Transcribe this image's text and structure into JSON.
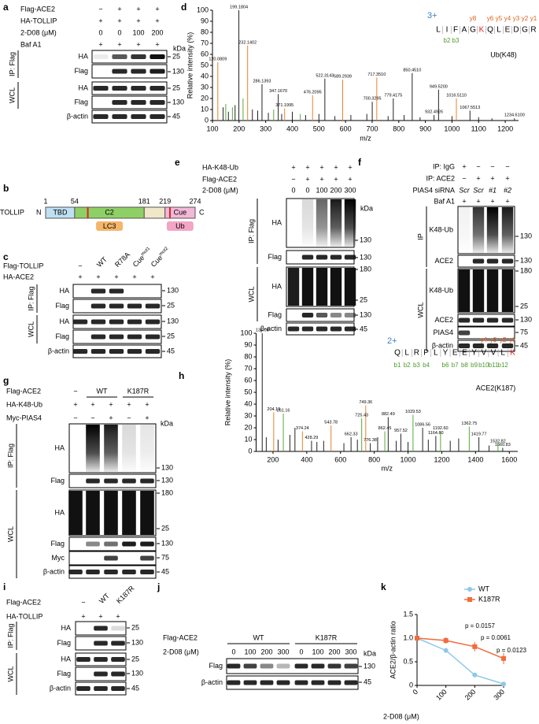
{
  "panels": {
    "a": {
      "letter": "a",
      "header": [
        {
          "label": "Flag-ACE2",
          "cells": [
            "−",
            "+",
            "+",
            "+"
          ]
        },
        {
          "label": "HA-TOLLIP",
          "cells": [
            "+",
            "+",
            "+",
            "+"
          ]
        },
        {
          "label": "2-D08 (μM)",
          "cells": [
            0,
            0,
            100,
            200
          ]
        },
        {
          "label": "Baf A1",
          "cells": [
            "+",
            "+",
            "+",
            "+"
          ]
        }
      ],
      "unit": "kDa",
      "groups": [
        {
          "name": "IP: Flag",
          "blots": [
            {
              "label": "HA",
              "markers": [
                25
              ]
            },
            {
              "label": "Flag",
              "markers": [
                130
              ]
            }
          ]
        },
        {
          "name": "WCL",
          "blots": [
            {
              "label": "HA",
              "markers": [
                25
              ]
            },
            {
              "label": "Flag",
              "markers": [
                130
              ]
            }
          ]
        },
        {
          "blots": [
            {
              "label": "β-actin",
              "markers": [
                45
              ]
            }
          ]
        }
      ]
    },
    "b": {
      "letter": "b",
      "protein": "TOLLIP",
      "n_term": "N",
      "c_term": "C",
      "domains": [
        "TBD",
        "C2",
        "Cue"
      ],
      "positions": [
        1,
        54,
        181,
        219,
        274
      ],
      "binders": [
        "LC3",
        "Ub"
      ]
    },
    "c": {
      "letter": "c",
      "header": [
        {
          "label": "Flag-TOLLIP",
          "cells": [
            "−",
            "WT",
            "R78A",
            {
              "text": "Cue",
              "sup": "mut1"
            },
            {
              "text": "Cue",
              "sup": "mut2"
            }
          ]
        },
        {
          "label": "HA-ACE2",
          "cells": [
            "+",
            "+",
            "+",
            "+",
            "+"
          ]
        }
      ],
      "groups": [
        {
          "name": "IP: Flag",
          "blots": [
            {
              "label": "HA",
              "markers": [
                130
              ]
            },
            {
              "label": "Flag",
              "markers": [
                25
              ]
            }
          ]
        },
        {
          "name": "WCL",
          "blots": [
            {
              "label": "HA",
              "markers": [
                130
              ]
            },
            {
              "label": "Flag",
              "markers": [
                25
              ]
            }
          ]
        },
        {
          "blots": [
            {
              "label": "β-actin",
              "markers": [
                45
              ]
            }
          ]
        }
      ]
    },
    "e": {
      "letter": "e",
      "header": [
        {
          "label": "HA-K48-Ub",
          "cells": [
            "+",
            "+",
            "+",
            "+",
            "+"
          ]
        },
        {
          "label": "Flag-ACE2",
          "cells": [
            "−",
            "+",
            "+",
            "+",
            "+"
          ]
        },
        {
          "label": "2-D08 (μM)",
          "cells": [
            0,
            0,
            100,
            200,
            300
          ]
        }
      ],
      "unit": "kDa",
      "groups": [
        {
          "name": "IP: Flag",
          "blots": [
            {
              "label": "HA",
              "markers": [
                130
              ]
            },
            {
              "label": "Flag",
              "markers": [
                130
              ]
            }
          ]
        },
        {
          "name": "WCL",
          "blots": [
            {
              "label": "HA",
              "markers": [
                180,
                25
              ]
            },
            {
              "label": "Flag",
              "markers": [
                130
              ]
            }
          ]
        },
        {
          "blots": [
            {
              "label": "β-actin",
              "markers": [
                45
              ]
            }
          ]
        }
      ]
    },
    "f": {
      "letter": "f",
      "header": [
        {
          "label": "IP: IgG",
          "cells": [
            "+",
            "−",
            "−",
            "−"
          ]
        },
        {
          "label": "IP: ACE2",
          "cells": [
            "−",
            "+",
            "+",
            "+"
          ]
        },
        {
          "label": "PIAS4 siRNA",
          "cells": [
            "Scr",
            "Scr",
            "#1",
            "#2"
          ]
        },
        {
          "label": "Baf A1",
          "cells": [
            "+",
            "+",
            "+",
            "+"
          ]
        }
      ],
      "groups": [
        {
          "name": "IP",
          "blots": [
            {
              "label": "K48-Ub",
              "markers": [
                130
              ]
            },
            {
              "label": "ACE2",
              "markers": [
                130
              ]
            }
          ]
        },
        {
          "name": "WCL",
          "blots": [
            {
              "label": "K48-Ub",
              "markers": [
                180,
                25
              ]
            },
            {
              "label": "ACE2",
              "markers": [
                130
              ]
            },
            {
              "label": "PIAS4",
              "markers": [
                75
              ]
            },
            {
              "label": "β-actin",
              "markers": [
                45
              ]
            }
          ]
        }
      ]
    },
    "g": {
      "letter": "g",
      "header": [
        {
          "label": "Flag-ACE2",
          "cells": [
            "−",
            "WT",
            "K187R"
          ]
        },
        {
          "label": "HA-K48-Ub",
          "cells": [
            "+",
            "+",
            "+",
            "+",
            "+"
          ]
        },
        {
          "label": "Myc-PIAS4",
          "cells": [
            "−",
            "−",
            "+",
            "−",
            "+"
          ]
        }
      ],
      "unit": "kDa",
      "groups": [
        {
          "name": "IP: Flag",
          "blots": [
            {
              "label": "HA",
              "markers": [
                130
              ]
            },
            {
              "label": "Flag",
              "markers": [
                130
              ]
            }
          ]
        },
        {
          "name": "WCL",
          "blots": [
            {
              "label": "HA",
              "markers": [
                180,
                25
              ]
            },
            {
              "label": "Flag",
              "markers": [
                130
              ]
            },
            {
              "label": "Myc",
              "markers": [
                75
              ]
            },
            {
              "label": "β-actin",
              "markers": [
                45
              ]
            }
          ]
        }
      ]
    },
    "i": {
      "letter": "i",
      "header": [
        {
          "label": "Flag-ACE2",
          "cells": [
            "−",
            "WT",
            "K187R"
          ]
        },
        {
          "label": "HA-TOLLIP",
          "cells": [
            "+",
            "+",
            "+"
          ]
        }
      ],
      "groups": [
        {
          "name": "IP: Flag",
          "blots": [
            {
              "label": "HA",
              "markers": [
                25
              ]
            },
            {
              "label": "Flag",
              "markers": [
                130
              ]
            }
          ]
        },
        {
          "name": "WCL",
          "blots": [
            {
              "label": "HA",
              "markers": [
                25
              ]
            },
            {
              "label": "Flag",
              "markers": [
                130
              ]
            },
            {
              "label": "β-actin",
              "markers": [
                45
              ]
            }
          ]
        }
      ]
    },
    "j": {
      "letter": "j",
      "header": [
        {
          "label": "Flag-ACE2",
          "cells": [
            "WT",
            "K187R"
          ]
        },
        {
          "label": "2-D08 (μM)",
          "cells": [
            0,
            100,
            200,
            300,
            0,
            100,
            200,
            300
          ]
        }
      ],
      "unit": "kDa",
      "groups": [
        {
          "blots": [
            {
              "label": "Flag",
              "markers": [
                130
              ]
            },
            {
              "label": "β-actin",
              "markers": [
                45
              ]
            }
          ]
        }
      ]
    }
  },
  "chart_data": [
    {
      "type": "spectrum",
      "letter": "d",
      "ylabel": "Relative intensity (%)",
      "xlabel": "m/z",
      "xlim": [
        100,
        1250
      ],
      "xticks": [
        100,
        200,
        300,
        400,
        500,
        600,
        700,
        800,
        900,
        1000,
        1100,
        1200
      ],
      "ylim": [
        0,
        100
      ],
      "yticks": [
        0,
        10,
        20,
        30,
        40,
        50,
        60,
        70,
        80,
        90,
        100
      ],
      "series": [
        {
          "color": "#e8822a",
          "x": [
            120.0809,
            232.1402,
            371.1995,
            476.2095,
            589.2939,
            717.351,
            1016.511
          ],
          "x_labels": [
            "120.0809",
            "232.1402",
            "371.1995",
            "476.2095",
            "589.2939",
            "717.3510",
            "1016.5110"
          ],
          "values": [
            53,
            68,
            11,
            23,
            37,
            39,
            20
          ]
        },
        {
          "color": "#222222",
          "x": [
            199.1804,
            286.1393,
            347.167,
            522.3143,
            700.3295,
            779.4175,
            850.451,
            932.4926,
            949.52,
            1067.5513,
            1234.61
          ],
          "x_labels": [
            "199.1804",
            "286.1393",
            "347.1670",
            "522.3143",
            "700.3295",
            "779.4175",
            "850.4510",
            "932.4926",
            "949.5200",
            "1067.5513",
            "1234.6100"
          ],
          "values": [
            100,
            33,
            24,
            38,
            17,
            20,
            43,
            5,
            28,
            9,
            2
          ]
        },
        {
          "color": "#5aa83c",
          "x": [
            150,
            175,
            215,
            330,
            430
          ],
          "values": [
            15,
            12,
            20,
            10,
            6
          ]
        },
        {
          "color": "#222222",
          "x": [
            140,
            160,
            185,
            250,
            270,
            310,
            360,
            400,
            450,
            500,
            560,
            620,
            680,
            760,
            820,
            880,
            1000,
            1100,
            1150
          ],
          "values": [
            12,
            8,
            14,
            10,
            9,
            7,
            6,
            8,
            5,
            6,
            4,
            5,
            6,
            4,
            5,
            3,
            4,
            3,
            2
          ]
        }
      ],
      "annotation": {
        "charge": "3+",
        "sequence": [
          "L",
          "I",
          "F",
          "A",
          "G",
          "K",
          "Q",
          "L",
          "E",
          "D",
          "G",
          "R"
        ],
        "ions_y": [
          "y8",
          "y6",
          "y5",
          "y4",
          "y3",
          "y2",
          "y1"
        ],
        "ions_b": [
          "b2",
          "b3"
        ],
        "label": "Ub(K48)"
      }
    },
    {
      "type": "spectrum",
      "letter": "h",
      "ylabel": "Relative intensity (%)",
      "xlabel": "m/z",
      "xlim": [
        100,
        1650
      ],
      "xticks": [
        200,
        400,
        600,
        800,
        1000,
        1200,
        1400,
        1600
      ],
      "ylim": [
        0,
        100
      ],
      "yticks": [
        0,
        10,
        20,
        30,
        40,
        50,
        60,
        70,
        80,
        90,
        100
      ],
      "series": [
        {
          "color": "#e8822a",
          "x": [
            204.13,
            374.24,
            543.78,
            749.36
          ],
          "x_labels": [
            "204.13",
            "374.24",
            "543.78",
            "749.36"
          ],
          "values": [
            33,
            17,
            22,
            39
          ]
        },
        {
          "color": "#5aa83c",
          "x": [
            261.16,
            725.43,
            862.45,
            1029.53,
            1192.6,
            1362.75,
            1532.82
          ],
          "x_labels": [
            "261.16",
            "725.43",
            "862.45",
            "1029.53",
            "1192.60",
            "1362.75",
            "1532.82"
          ],
          "values": [
            32,
            28,
            17,
            31,
            17,
            21,
            6
          ]
        },
        {
          "color": "#222222",
          "x": [
            136.08,
            428.29,
            662.33,
            776.38,
            882.49,
            957.52,
            1086.56,
            1164.6,
            1419.77,
            1560.83
          ],
          "x_labels": [
            "136.08",
            "428.29",
            "662.33",
            "776.38",
            "882.49",
            "957.52",
            "1086.56",
            "1164.60",
            "1419.77",
            "1560.83"
          ],
          "values": [
            100,
            9,
            12,
            7,
            29,
            15,
            20,
            13,
            12,
            3
          ]
        },
        {
          "color": "#222222",
          "x": [
            160,
            230,
            300,
            330,
            460,
            500,
            620,
            700,
            820,
            930,
            1000,
            1120,
            1250,
            1300,
            1480
          ],
          "values": [
            12,
            10,
            14,
            20,
            8,
            9,
            7,
            10,
            12,
            9,
            8,
            10,
            9,
            11,
            5
          ]
        }
      ],
      "annotation": {
        "charge": "2+",
        "sequence": [
          "Q",
          "L",
          "R",
          "P",
          "L",
          "Y",
          "E",
          "E",
          "Y",
          "V",
          "V",
          "L",
          "K"
        ],
        "ions_y": [
          "y4",
          "y3",
          "y2",
          "y1"
        ],
        "ions_b": [
          "b1",
          "b2",
          "b3",
          "b4",
          "b6",
          "b7",
          "b8",
          "b9",
          "b10",
          "b11",
          "b12"
        ],
        "label": "ACE2(K187)"
      }
    },
    {
      "type": "line",
      "letter": "k",
      "xlabel": "2-D08 (μM)",
      "ylabel": "ACE2/β-actin ratio",
      "x": [
        0,
        100,
        200,
        300
      ],
      "xlim": [
        0,
        300
      ],
      "xticks": [
        0,
        100,
        200,
        300
      ],
      "ylim": [
        0,
        1.5
      ],
      "yticks": [
        0,
        0.5,
        {
          "value": 1,
          "label": "1.0"
        },
        1.5
      ],
      "legend": "upper right",
      "series": [
        {
          "name": "WT",
          "color": "#8ec8e8",
          "values": [
            1,
            0.74,
            0.22,
            0.03
          ],
          "errors": [
            0,
            0.05,
            0.03,
            0.01
          ]
        },
        {
          "name": "K187R",
          "color": "#f26b3a",
          "values": [
            1,
            0.95,
            0.82,
            0.57
          ],
          "errors": [
            0,
            0.07,
            0.1,
            0.12
          ]
        }
      ],
      "annotations": [
        "p = 0.0157",
        "p = 0.0061",
        "p = 0.0123"
      ]
    }
  ]
}
